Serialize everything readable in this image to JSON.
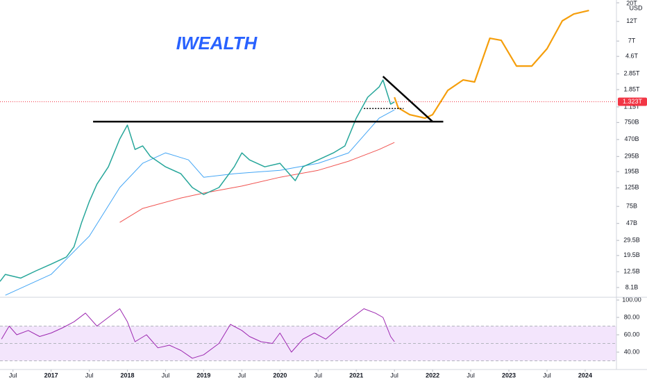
{
  "chart_data": [
    {
      "type": "line",
      "title": "IWEALTH",
      "currency": "USD",
      "log_scale": true,
      "xlim": [
        2016.33,
        2024.41
      ],
      "ylim": [
        6200000000.0,
        21600000000000.0
      ],
      "yticks": [
        {
          "value": 20000000000000.0,
          "label": "20T"
        },
        {
          "value": 12000000000000.0,
          "label": "12T"
        },
        {
          "value": 7000000000000.0,
          "label": "7T"
        },
        {
          "value": 4600000000000.0,
          "label": "4.6T"
        },
        {
          "value": 2850000000000.0,
          "label": "2.85T"
        },
        {
          "value": 1850000000000.0,
          "label": "1.85T"
        },
        {
          "value": 1150000000000.0,
          "label": "1.15T"
        },
        {
          "value": 750000000000.0,
          "label": "750B"
        },
        {
          "value": 470000000000.0,
          "label": "470B"
        },
        {
          "value": 295000000000.0,
          "label": "295B"
        },
        {
          "value": 195000000000.0,
          "label": "195B"
        },
        {
          "value": 125000000000.0,
          "label": "125B"
        },
        {
          "value": 75000000000.0,
          "label": "75B"
        },
        {
          "value": 47000000000.0,
          "label": "47B"
        },
        {
          "value": 29500000000.0,
          "label": "29.5B"
        },
        {
          "value": 19500000000.0,
          "label": "19.5B"
        },
        {
          "value": 12500000000.0,
          "label": "12.5B"
        },
        {
          "value": 8100000000.0,
          "label": "8.1B"
        }
      ],
      "xticks": [
        {
          "value": 2016.5,
          "label": "Jul"
        },
        {
          "value": 2017,
          "label": "2017"
        },
        {
          "value": 2017.5,
          "label": "Jul"
        },
        {
          "value": 2018,
          "label": "2018"
        },
        {
          "value": 2018.5,
          "label": "Jul"
        },
        {
          "value": 2019,
          "label": "2019"
        },
        {
          "value": 2019.5,
          "label": "Jul"
        },
        {
          "value": 2020,
          "label": "2020"
        },
        {
          "value": 2020.5,
          "label": "Jul"
        },
        {
          "value": 2021,
          "label": "2021"
        },
        {
          "value": 2021.5,
          "label": "Jul"
        },
        {
          "value": 2022,
          "label": "2022"
        },
        {
          "value": 2022.5,
          "label": "Jul"
        },
        {
          "value": 2023,
          "label": "2023"
        },
        {
          "value": 2023.5,
          "label": "Jul"
        },
        {
          "value": 2024,
          "label": "2024"
        }
      ],
      "current_price": {
        "value": 1323000000000.0,
        "label": "1.323T",
        "color": "#f23645"
      },
      "series": [
        {
          "color": "#f0524f",
          "width": 1,
          "style": "solid",
          "x": [
            2017.9,
            2018.2,
            2018.7,
            2019.0,
            2019.5,
            2020.0,
            2020.5,
            2020.9,
            2021.3,
            2021.5
          ],
          "values": [
            48400000000.0,
            70900000000.0,
            94400000000.0,
            108000000000.0,
            131000000000.0,
            167000000000.0,
            202000000000.0,
            259000000000.0,
            358000000000.0,
            434000000000.0
          ]
        },
        {
          "color": "#42a5f5",
          "width": 1,
          "style": "solid",
          "x": [
            2016.4,
            2017.0,
            2017.5,
            2017.9,
            2018.2,
            2018.5,
            2018.8,
            2019.0,
            2019.4,
            2020.0,
            2020.5,
            2020.9,
            2021.1,
            2021.3,
            2021.5
          ],
          "values": [
            6550000000.0,
            11600000000.0,
            33100000000.0,
            126000000000.0,
            245000000000.0,
            326000000000.0,
            269000000000.0,
            167000000000.0,
            184000000000.0,
            202000000000.0,
            245000000000.0,
            326000000000.0,
            525000000000.0,
            845000000000.0,
            1060000000000.0
          ]
        },
        {
          "color": "#26a69a",
          "width": 1.5,
          "style": "solid",
          "x": [
            2016.33,
            2016.4,
            2016.6,
            2016.8,
            2017.0,
            2017.2,
            2017.3,
            2017.4,
            2017.5,
            2017.6,
            2017.75,
            2017.9,
            2018.0,
            2018.1,
            2018.2,
            2018.3,
            2018.5,
            2018.7,
            2018.85,
            2019.0,
            2019.2,
            2019.4,
            2019.5,
            2019.6,
            2019.8,
            2020.0,
            2020.2,
            2020.3,
            2020.5,
            2020.7,
            2020.85,
            2021.0,
            2021.15,
            2021.3,
            2021.35,
            2021.45,
            2021.5
          ],
          "values": [
            9580000000.0,
            11600000000.0,
            10500000000.0,
            12800000000.0,
            15400000000.0,
            18700000000.0,
            24800000000.0,
            48400000000.0,
            85700000000.0,
            138000000000.0,
            222000000000.0,
            477000000000.0,
            698000000000.0,
            358000000000.0,
            394000000000.0,
            296000000000.0,
            222000000000.0,
            184000000000.0,
            126000000000.0,
            104000000000.0,
            126000000000.0,
            222000000000.0,
            326000000000.0,
            269000000000.0,
            222000000000.0,
            245000000000.0,
            152000000000.0,
            222000000000.0,
            269000000000.0,
            326000000000.0,
            394000000000.0,
            845000000000.0,
            1500000000000.0,
            1990000000000.0,
            2410000000000.0,
            1240000000000.0,
            1320000000000.0
          ]
        },
        {
          "color": "#f59e0b",
          "width": 2.2,
          "style": "solid",
          "x": [
            2021.5,
            2021.55,
            2021.7,
            2021.9,
            2022.0,
            2022.2,
            2022.4,
            2022.55,
            2022.75,
            2022.9,
            2023.1,
            2023.3,
            2023.5,
            2023.7,
            2023.85,
            2024.05
          ],
          "values": [
            1500000000000.0,
            1120000000000.0,
            929000000000.0,
            845000000000.0,
            929000000000.0,
            1810000000000.0,
            2410000000000.0,
            2280000000000.0,
            7560000000000.0,
            7140000000000.0,
            3530000000000.0,
            3530000000000.0,
            5680000000000.0,
            12200000000000.0,
            14700000000000.0,
            16200000000000.0
          ]
        },
        {
          "color": "#000000",
          "width": 2.5,
          "style": "solid",
          "x": [
            2017.55,
            2022.14
          ],
          "values": [
            768000000000.0,
            768000000000.0
          ]
        },
        {
          "color": "#000000",
          "width": 2.5,
          "style": "solid",
          "x": [
            2021.35,
            2022.0
          ],
          "values": [
            2650000000000.0,
            768000000000.0
          ]
        },
        {
          "color": "#000000",
          "width": 1.5,
          "style": "dotted",
          "x": [
            2021.1,
            2021.62
          ],
          "values": [
            1100000000000.0,
            1100000000000.0
          ]
        }
      ]
    },
    {
      "type": "line",
      "xlim": [
        2016.33,
        2024.41
      ],
      "ylim": [
        20,
        103.2
      ],
      "yticks": [
        {
          "value": 100,
          "label": "100.00"
        },
        {
          "value": 80,
          "label": "80.00"
        },
        {
          "value": 60,
          "label": "60.00"
        },
        {
          "value": 40,
          "label": "40.00"
        }
      ],
      "band": [
        30,
        70
      ],
      "band_color": "#f3e5fc",
      "midline": 50,
      "series": [
        {
          "color": "#9c27b0",
          "width": 1,
          "style": "solid",
          "x": [
            2016.35,
            2016.45,
            2016.55,
            2016.7,
            2016.85,
            2017.0,
            2017.15,
            2017.3,
            2017.45,
            2017.6,
            2017.75,
            2017.9,
            2018.0,
            2018.1,
            2018.25,
            2018.4,
            2018.55,
            2018.7,
            2018.85,
            2019.0,
            2019.2,
            2019.35,
            2019.5,
            2019.6,
            2019.75,
            2019.9,
            2020.0,
            2020.15,
            2020.3,
            2020.45,
            2020.6,
            2020.8,
            2020.95,
            2021.1,
            2021.25,
            2021.35,
            2021.45,
            2021.5
          ],
          "values": [
            55,
            70,
            60,
            65,
            58,
            62,
            68,
            75,
            85,
            70,
            80,
            90,
            75,
            52,
            60,
            45,
            48,
            42,
            33,
            37,
            50,
            72,
            65,
            58,
            52,
            50,
            62,
            40,
            55,
            62,
            55,
            70,
            80,
            90,
            85,
            80,
            58,
            52
          ]
        }
      ]
    }
  ]
}
